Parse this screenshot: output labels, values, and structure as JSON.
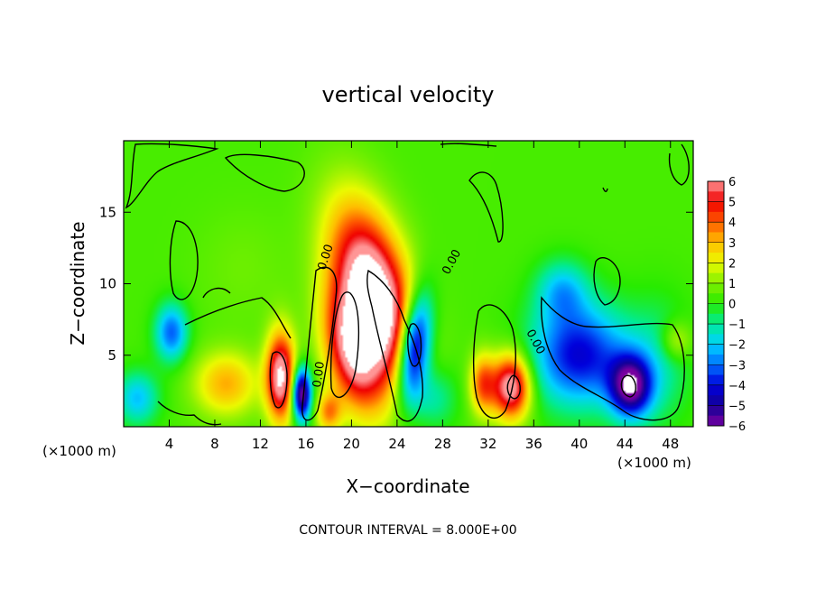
{
  "chart_data": {
    "type": "heatmap",
    "title": "vertical velocity",
    "xlabel": "X−coordinate",
    "ylabel": "Z−coordinate",
    "x_unit_note_left": "(×1000 m)",
    "x_unit_note_right": "(×1000 m)",
    "footer": "CONTOUR INTERVAL = 8.000E+00",
    "xlim": [
      0,
      50
    ],
    "ylim": [
      0,
      20
    ],
    "x_ticks": [
      4,
      8,
      12,
      16,
      20,
      24,
      28,
      32,
      36,
      40,
      44,
      48
    ],
    "y_ticks": [
      5,
      10,
      15
    ],
    "colorbar": {
      "ticks": [
        6,
        5,
        4,
        3,
        2,
        1,
        0,
        -1,
        -2,
        -3,
        -4,
        -5,
        -6
      ],
      "tick_labels": [
        "6",
        "5",
        "4",
        "3",
        "2",
        "1",
        "0",
        "−1",
        "−2",
        "−3",
        "−4",
        "−5",
        "−6"
      ],
      "range": [
        -6,
        6
      ]
    },
    "contour_labels": [
      "0.00",
      "0.00",
      "0.00",
      "0.00"
    ],
    "features": [
      {
        "x": 22,
        "z": 9,
        "sx": 2.2,
        "sz": 4.5,
        "amp": 8,
        "rot": -0.35
      },
      {
        "x": 20,
        "z": 5,
        "sx": 1.6,
        "sz": 3.0,
        "amp": 5,
        "rot": -0.3
      },
      {
        "x": 13.8,
        "z": 3.5,
        "sx": 0.9,
        "sz": 2.2,
        "amp": 6.5,
        "rot": 0
      },
      {
        "x": 15.6,
        "z": 2.3,
        "sx": 0.6,
        "sz": 1.3,
        "amp": -7,
        "rot": 0
      },
      {
        "x": 25.5,
        "z": 5.5,
        "sx": 1.0,
        "sz": 2.6,
        "amp": -7,
        "rot": 0.15
      },
      {
        "x": 34,
        "z": 2.8,
        "sx": 1.2,
        "sz": 1.6,
        "amp": 6.5,
        "rot": 0
      },
      {
        "x": 31.5,
        "z": 3.0,
        "sx": 0.8,
        "sz": 1.5,
        "amp": 3.5,
        "rot": 0
      },
      {
        "x": 40,
        "z": 5.0,
        "sx": 3.0,
        "sz": 2.5,
        "amp": -4.5,
        "rot": 0
      },
      {
        "x": 44.5,
        "z": 2.8,
        "sx": 1.3,
        "sz": 1.5,
        "amp": -6,
        "rot": 0
      },
      {
        "x": 38.5,
        "z": 9.5,
        "sx": 1.6,
        "sz": 1.5,
        "amp": -2.3,
        "rot": 0
      },
      {
        "x": 4.2,
        "z": 6.6,
        "sx": 1.0,
        "sz": 1.4,
        "amp": -3.5,
        "rot": 0
      },
      {
        "x": 1.2,
        "z": 2.0,
        "sx": 1.3,
        "sz": 1.3,
        "amp": -2.5,
        "rot": 0
      },
      {
        "x": 9.0,
        "z": 3.0,
        "sx": 2.0,
        "sz": 1.6,
        "amp": 2.8,
        "rot": 0
      },
      {
        "x": 27.0,
        "z": 2.0,
        "sx": 1.5,
        "sz": 1.6,
        "amp": -2.0,
        "rot": 0
      },
      {
        "x": 47.0,
        "z": 4.5,
        "sx": 2.0,
        "sz": 3.0,
        "amp": -1.4,
        "rot": 0
      },
      {
        "x": 48.5,
        "z": 6.0,
        "sx": 1.0,
        "sz": 1.0,
        "amp": 1.8,
        "rot": 0
      },
      {
        "x": 10.5,
        "z": 11.0,
        "sx": 3.0,
        "sz": 3.0,
        "amp": 0.4,
        "rot": 0
      },
      {
        "x": 18.0,
        "z": 1.0,
        "sx": 0.8,
        "sz": 1.0,
        "amp": 3.0,
        "rot": 0
      }
    ]
  }
}
